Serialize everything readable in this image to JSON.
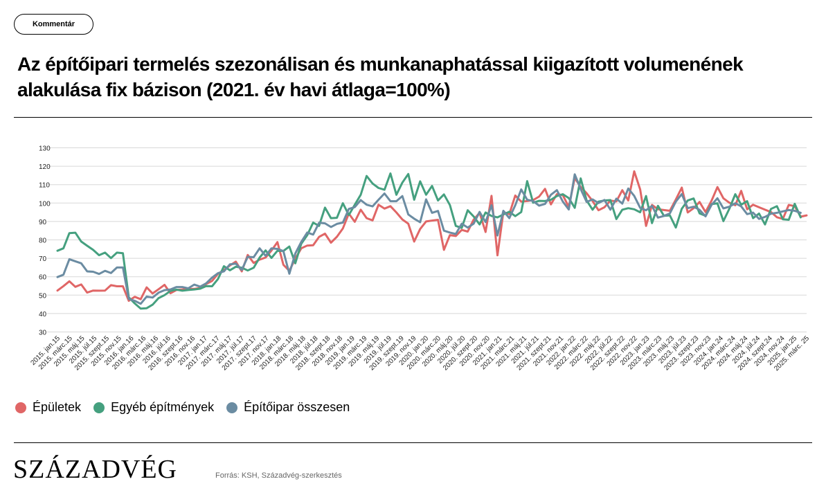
{
  "tag": {
    "label": "Kommentár"
  },
  "title": "Az építőipari termelés szezonálisan és munkanaphatással kiigazított volumenének alakulása fix bázison (2021. év havi átlaga=100%)",
  "logo": "SZÁZADVÉG",
  "source": "Forrás: KSH, Századvég-szerkesztés",
  "chart_data": {
    "type": "line",
    "ylim": [
      30,
      130
    ],
    "yticks": [
      30,
      40,
      50,
      60,
      70,
      80,
      90,
      100,
      110,
      120,
      130
    ],
    "grid": true,
    "legend_position": "bottom-left",
    "x_tick_labels": [
      "2015. jan.15",
      "2015. márc.15",
      "2015. máj.15",
      "2015. júl.15",
      "2015. szept.15",
      "2015. nov.15",
      "2016. jan.16",
      "2016. márc.16",
      "2016. máj.16",
      "2016. júl.16",
      "2016. szept.16",
      "2016. nov.16",
      "2017. jan.17",
      "2017. márc.17",
      "2017. máj.17",
      "2017. júl.17",
      "2017. szept.17",
      "2017. nov.17",
      "2018. jan.18",
      "2018. márc.18",
      "2018. máj.18",
      "2018. júl.18",
      "2018. szept.18",
      "2018. nov.18",
      "2019. jan.19",
      "2019. márc.19",
      "2019. máj.19",
      "2019. júl.19",
      "2019. szept.19",
      "2019. nov.19",
      "2020. jan.20",
      "2020. márc.20",
      "2020. máj.20",
      "2020. júl.20",
      "2020. szept.20",
      "2020. nov.20",
      "2021. jan.21",
      "2021. márc.21",
      "2021. máj.21",
      "2021. júl.21",
      "2021. szept.21",
      "2021. nov.21",
      "2022. jan.22",
      "2022. márc.22",
      "2022. máj.22",
      "2022. júl.22",
      "2022. szept.22",
      "2022. nov.22",
      "2023. jan.23",
      "2023. márc.23",
      "2023. máj.23",
      "2023. júl.23",
      "2023. szept.23",
      "2023. nov.23",
      "2024. jan.24",
      "2024. márc.24",
      "2024. máj.24",
      "2024. júl.24",
      "2024. szept.24",
      "2024. nov.24",
      "2025. jan.25",
      "2025. márc. 25"
    ],
    "series": [
      {
        "name": "Épületek",
        "color": "#e06666",
        "values": [
          52.5,
          54.9,
          57.5,
          54.5,
          55.8,
          51.4,
          52.5,
          52.4,
          52.5,
          55.4,
          54.8,
          54.8,
          46.9,
          49.1,
          47.8,
          54.2,
          50.9,
          53.2,
          55.6,
          51.0,
          52.8,
          53.1,
          53.3,
          53.4,
          53.9,
          56.0,
          57.7,
          61.6,
          63.6,
          66.1,
          68.2,
          62.9,
          71.8,
          67.5,
          69.3,
          70.4,
          74.2,
          78.8,
          66.5,
          63.2,
          69.8,
          75.4,
          76.9,
          77.1,
          81.6,
          83.4,
          78.5,
          81.7,
          86.2,
          94.3,
          89.8,
          96.4,
          91.8,
          90.6,
          99.1,
          97.0,
          98.3,
          94.9,
          91.1,
          88.8,
          79.1,
          85.9,
          90.0,
          90.5,
          90.9,
          74.6,
          82.6,
          82.1,
          85.4,
          84.5,
          91.0,
          94.7,
          84.3,
          103.9,
          71.6,
          95.1,
          94.0,
          104.1,
          100.8,
          101.1,
          101.6,
          103.5,
          107.7,
          99.3,
          104.8,
          104.3,
          97.9,
          113.6,
          108.7,
          105.3,
          101.1,
          96.1,
          97.7,
          101.3,
          100.9,
          107.0,
          101.4,
          117.2,
          107.4,
          87.6,
          99.0,
          96.6,
          96.2,
          95.8,
          101.9,
          108.4,
          94.9,
          97.2,
          100.6,
          95.1,
          101.2,
          108.7,
          102.6,
          100.2,
          98.8,
          106.6,
          96.6,
          99.1,
          97.7,
          96.4,
          95.1,
          92.3,
          91.4,
          99.0,
          98.3,
          92.6,
          93.3
        ]
      },
      {
        "name": "Egyéb építmények",
        "color": "#45a07f",
        "values": [
          74.1,
          75.4,
          83.7,
          83.9,
          79.1,
          76.8,
          74.6,
          71.7,
          73.1,
          70.1,
          73.1,
          72.8,
          48.8,
          45.5,
          42.7,
          42.9,
          44.8,
          48.4,
          50.0,
          52.3,
          53.0,
          52.4,
          52.8,
          53.1,
          53.5,
          54.9,
          54.8,
          58.8,
          65.7,
          63.5,
          65.4,
          64.9,
          63.4,
          64.9,
          70.4,
          74.3,
          70.2,
          74.1,
          74.0,
          76.4,
          67.3,
          77.9,
          82.5,
          89.4,
          87.6,
          97.5,
          91.8,
          92.0,
          99.9,
          93.5,
          99.1,
          104.5,
          114.7,
          110.6,
          108.2,
          107.2,
          116.1,
          104.5,
          111.1,
          115.8,
          101.8,
          111.8,
          104.5,
          109.3,
          101.4,
          104.7,
          98.9,
          87.6,
          86.5,
          96.1,
          92.7,
          88.4,
          94.9,
          93.0,
          92.2,
          93.8,
          95.3,
          92.9,
          95.1,
          111.9,
          100.2,
          101.2,
          101.1,
          101.8,
          103.8,
          104.8,
          102.7,
          97.4,
          113.4,
          101.4,
          96.4,
          100.8,
          101.4,
          101.6,
          91.3,
          96.4,
          97.2,
          96.6,
          95.0,
          103.8,
          89.1,
          98.5,
          93.1,
          93.3,
          86.7,
          96.9,
          101.4,
          102.5,
          94.4,
          93.1,
          99.4,
          99.9,
          90.2,
          96.9,
          104.8,
          99.1,
          101.0,
          91.8,
          94.3,
          88.4,
          96.8,
          98.3,
          91.2,
          90.9,
          99.6,
          92.2
        ]
      },
      {
        "name": "Építőipar összesen",
        "color": "#6b8ca2",
        "values": [
          59.8,
          61.1,
          69.5,
          68.4,
          67.3,
          62.9,
          62.7,
          61.5,
          63.2,
          62.0,
          65.0,
          65.0,
          47.9,
          46.9,
          45.3,
          49.2,
          48.7,
          51.3,
          52.7,
          53.1,
          54.4,
          54.4,
          53.7,
          55.7,
          54.6,
          56.4,
          59.5,
          61.9,
          62.9,
          66.7,
          67.1,
          63.7,
          70.8,
          70.6,
          75.4,
          71.3,
          75.4,
          75.1,
          73.9,
          61.6,
          72.6,
          78.9,
          84.0,
          82.9,
          89.3,
          89.0,
          87.0,
          88.7,
          89.4,
          96.8,
          97.8,
          101.6,
          99.1,
          98.2,
          101.8,
          105.2,
          101.0,
          101.0,
          103.8,
          93.8,
          91.5,
          89.6,
          102.0,
          94.7,
          95.7,
          85.0,
          84.0,
          83.2,
          88.8,
          86.7,
          88.8,
          95.2,
          89.7,
          98.8,
          82.4,
          95.8,
          91.8,
          98.8,
          107.4,
          101.8,
          101.1,
          98.6,
          99.5,
          104.5,
          107.0,
          100.8,
          96.5,
          115.6,
          107.6,
          100.6,
          102.0,
          100.0,
          101.7,
          96.4,
          102.4,
          99.7,
          107.9,
          103.9,
          97.4,
          96.1,
          98.5,
          92.1,
          93.0,
          94.4,
          100.8,
          104.9,
          97.2,
          98.0,
          96.3,
          92.8,
          99.0,
          102.6,
          97.1,
          98.0,
          99.9,
          98.2,
          94.0,
          94.8,
          91.4,
          92.5,
          94.2,
          94.7,
          95.5,
          96.2,
          95.8,
          94.7
        ]
      }
    ]
  }
}
